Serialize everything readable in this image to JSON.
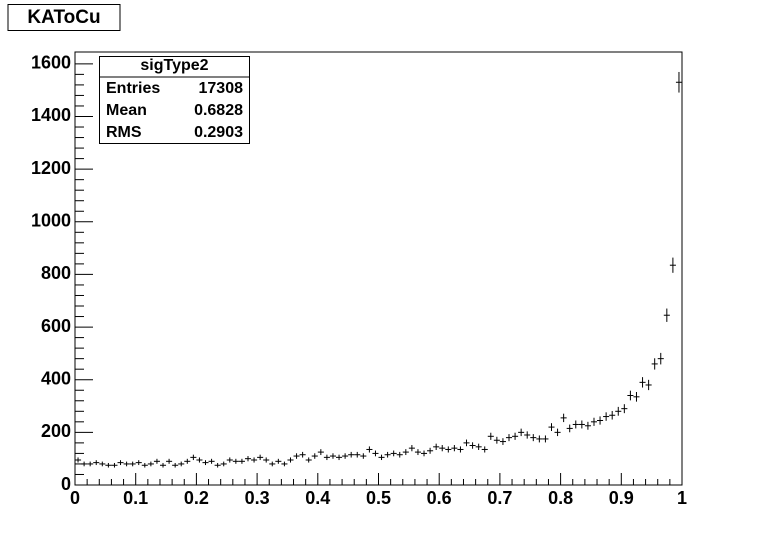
{
  "chart_data": {
    "type": "histogram",
    "title": "KAToCu",
    "bins": [
      0,
      0.01,
      0.02,
      0.03,
      0.04,
      0.05,
      0.06,
      0.07,
      0.08,
      0.09,
      0.1,
      0.11,
      0.12,
      0.13,
      0.14,
      0.15,
      0.16,
      0.17,
      0.18,
      0.19,
      0.2,
      0.21,
      0.22,
      0.23,
      0.24,
      0.25,
      0.26,
      0.27,
      0.28,
      0.29,
      0.3,
      0.31,
      0.32,
      0.33,
      0.34,
      0.35,
      0.36,
      0.37,
      0.38,
      0.39,
      0.4,
      0.41,
      0.42,
      0.43,
      0.44,
      0.45,
      0.46,
      0.47,
      0.48,
      0.49,
      0.5,
      0.51,
      0.52,
      0.53,
      0.54,
      0.55,
      0.56,
      0.57,
      0.58,
      0.59,
      0.6,
      0.61,
      0.62,
      0.63,
      0.64,
      0.65,
      0.66,
      0.67,
      0.68,
      0.69,
      0.7,
      0.71,
      0.72,
      0.73,
      0.74,
      0.75,
      0.76,
      0.77,
      0.78,
      0.79,
      0.8,
      0.81,
      0.82,
      0.83,
      0.84,
      0.85,
      0.86,
      0.87,
      0.88,
      0.89,
      0.9,
      0.91,
      0.92,
      0.93,
      0.94,
      0.95,
      0.96,
      0.97,
      0.98,
      0.99,
      1
    ],
    "values": [
      95,
      80,
      80,
      85,
      80,
      75,
      75,
      85,
      80,
      80,
      85,
      75,
      80,
      90,
      75,
      90,
      75,
      80,
      90,
      105,
      95,
      85,
      90,
      75,
      80,
      95,
      90,
      90,
      100,
      95,
      105,
      95,
      80,
      90,
      80,
      95,
      110,
      115,
      95,
      110,
      125,
      105,
      110,
      105,
      110,
      115,
      115,
      110,
      135,
      120,
      105,
      115,
      120,
      115,
      125,
      140,
      125,
      120,
      130,
      145,
      140,
      135,
      140,
      135,
      160,
      150,
      145,
      135,
      185,
      170,
      165,
      180,
      185,
      200,
      190,
      180,
      175,
      175,
      220,
      200,
      255,
      215,
      230,
      230,
      225,
      240,
      245,
      260,
      265,
      280,
      290,
      340,
      335,
      390,
      380,
      460,
      480,
      645,
      835,
      1530
    ],
    "color": "#000000",
    "xlim": [
      0,
      1
    ],
    "xticks": [
      0,
      0.1,
      0.2,
      0.3,
      0.4,
      0.5,
      0.6,
      0.7,
      0.8,
      0.9,
      1
    ],
    "ylim": [
      0,
      1645
    ],
    "yticks": [
      0,
      200,
      400,
      600,
      800,
      1000,
      1200,
      1400,
      1600
    ],
    "stats": {
      "title": "sigType2",
      "rows": [
        {
          "label": "Entries",
          "value": 17308
        },
        {
          "label": "Mean",
          "value": 0.6828
        },
        {
          "label": "RMS",
          "value": 0.2903
        }
      ]
    }
  }
}
